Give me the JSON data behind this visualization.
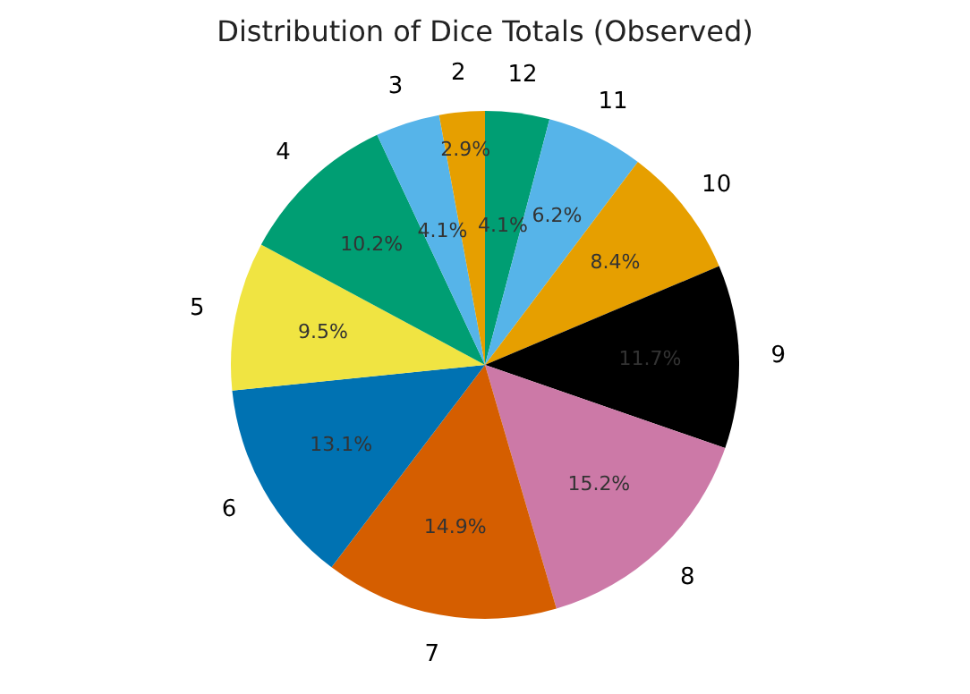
{
  "chart_data": {
    "type": "pie",
    "title": "Distribution of Dice Totals (Observed)",
    "categories": [
      "12",
      "11",
      "10",
      "9",
      "8",
      "7",
      "6",
      "5",
      "4",
      "3",
      "2"
    ],
    "values": [
      4.1,
      6.2,
      8.4,
      11.7,
      15.2,
      14.9,
      13.1,
      9.5,
      10.2,
      4.1,
      2.9
    ],
    "value_labels": [
      "4.1%",
      "6.2%",
      "8.4%",
      "11.7%",
      "15.2%",
      "14.9%",
      "13.1%",
      "9.5%",
      "10.2%",
      "4.1%",
      "2.9%"
    ],
    "colors": [
      "#009e73",
      "#56b4e9",
      "#e69f00",
      "#000000",
      "#cc79a7",
      "#d55e00",
      "#0072b2",
      "#f0e442",
      "#009e73",
      "#56b4e9",
      "#e69f00"
    ]
  }
}
